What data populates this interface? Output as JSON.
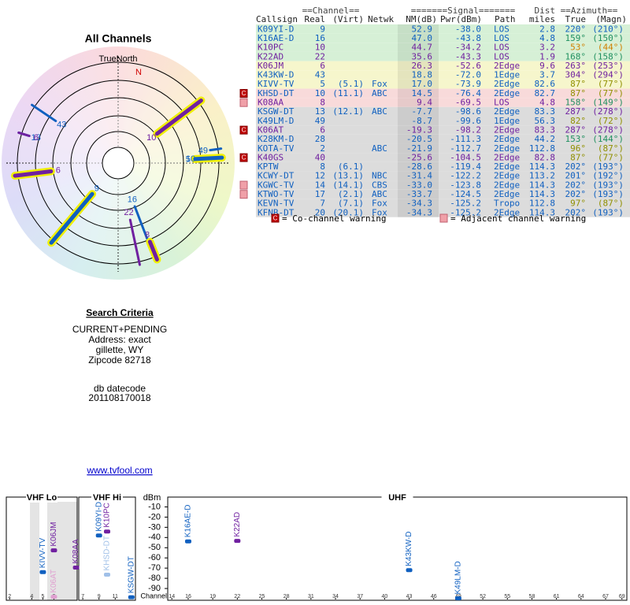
{
  "polar": {
    "title": "All Channels",
    "north_label": "TrueNorth",
    "n_label": "N",
    "rays": [
      {
        "label": "9",
        "azimuth": 220,
        "nm": 52.9,
        "color": "#1060c0",
        "thick": true
      },
      {
        "label": "16",
        "azimuth": 159,
        "nm": 47.0,
        "color": "#1060c0",
        "thick": false
      },
      {
        "label": "10",
        "azimuth": 53,
        "nm": 44.7,
        "color": "#7020a0",
        "thick": true
      },
      {
        "label": "22",
        "azimuth": 168,
        "nm": 35.6,
        "color": "#7020a0",
        "thick": false
      },
      {
        "label": "6",
        "azimuth": 263,
        "nm": 26.3,
        "color": "#7020a0",
        "thick": true
      },
      {
        "label": "43",
        "azimuth": 304,
        "nm": 18.8,
        "color": "#1060c0",
        "thick": false
      },
      {
        "label": "5",
        "azimuth": 87,
        "nm": 17.0,
        "color": "#1060c0",
        "thick": true
      },
      {
        "label": "10",
        "azimuth": 87,
        "nm": 14.5,
        "color": "#1060c0",
        "thick": false
      },
      {
        "label": "8",
        "azimuth": 158,
        "nm": 9.4,
        "color": "#7020a0",
        "thick": true
      },
      {
        "label": "13",
        "azimuth": 287,
        "nm": -7.7,
        "color": "#1060c0",
        "thick": false
      },
      {
        "label": "49",
        "azimuth": 82,
        "nm": -8.7,
        "color": "#1060c0",
        "thick": false
      },
      {
        "label": "6",
        "azimuth": 287,
        "nm": -19.3,
        "color": "#7020a0",
        "thick": false
      }
    ]
  },
  "table": {
    "header_groups": [
      "==Channel==",
      "=======Signal=======",
      "Dist",
      "==Azimuth=="
    ],
    "columns": [
      "Callsign",
      "Real",
      "(Virt)",
      "Netwk",
      "NM(dB)",
      "Pwr(dBm)",
      "Path",
      "miles",
      "True",
      "(Magn)"
    ],
    "rows": [
      {
        "cells": [
          "K09YI-D",
          "9",
          "",
          "",
          "52.9",
          "-38.0",
          "LOS",
          "2.8",
          "220°",
          "(210°)"
        ],
        "color": "#1060c0",
        "az_color": "#1060c0",
        "bg": "#d6f0d6"
      },
      {
        "cells": [
          "K16AE-D",
          "16",
          "",
          "",
          "47.0",
          "-43.8",
          "LOS",
          "4.8",
          "159°",
          "(150°)"
        ],
        "color": "#1060c0",
        "az_color": "#209060",
        "bg": "#d6f0d6"
      },
      {
        "cells": [
          "K10PC",
          "10",
          "",
          "",
          "44.7",
          "-34.2",
          "LOS",
          "3.2",
          "53°",
          "(44°)"
        ],
        "color": "#7020a0",
        "az_color": "#d08000",
        "bg": "#d6f0d6"
      },
      {
        "cells": [
          "K22AD",
          "22",
          "",
          "",
          "35.6",
          "-43.3",
          "LOS",
          "1.9",
          "168°",
          "(158°)"
        ],
        "color": "#7020a0",
        "az_color": "#209060",
        "bg": "#d6f0d6"
      },
      {
        "cells": [
          "K06JM",
          "6",
          "",
          "",
          "26.3",
          "-52.6",
          "2Edge",
          "9.6",
          "263°",
          "(253°)"
        ],
        "color": "#7020a0",
        "az_color": "#7020a0",
        "bg": "#f6f6cc"
      },
      {
        "cells": [
          "K43KW-D",
          "43",
          "",
          "",
          "18.8",
          "-72.0",
          "1Edge",
          "3.7",
          "304°",
          "(294°)"
        ],
        "color": "#1060c0",
        "az_color": "#7020a0",
        "bg": "#f6f6cc"
      },
      {
        "cells": [
          "KIVV-TV",
          "5",
          "(5.1)",
          "Fox",
          "17.0",
          "-73.9",
          "2Edge",
          "82.6",
          "87°",
          "(77°)"
        ],
        "color": "#1060c0",
        "az_color": "#909000",
        "bg": "#f6f6cc"
      },
      {
        "cells": [
          "KHSD-DT",
          "10",
          "(11.1)",
          "ABC",
          "14.5",
          "-76.4",
          "2Edge",
          "82.7",
          "87°",
          "(77°)"
        ],
        "color": "#1060c0",
        "az_color": "#909000",
        "bg": "#f8dada",
        "warning": "co"
      },
      {
        "cells": [
          "K08AA",
          "8",
          "",
          "",
          "9.4",
          "-69.5",
          "LOS",
          "4.8",
          "158°",
          "(149°)"
        ],
        "color": "#7020a0",
        "az_color": "#209060",
        "bg": "#f8dada",
        "warning": "adj"
      },
      {
        "cells": [
          "KSGW-DT",
          "13",
          "(12.1)",
          "ABC",
          "-7.7",
          "-98.6",
          "2Edge",
          "83.3",
          "287°",
          "(278°)"
        ],
        "color": "#1060c0",
        "az_color": "#7020a0",
        "bg": "#dcdcdc"
      },
      {
        "cells": [
          "K49LM-D",
          "49",
          "",
          "",
          "-8.7",
          "-99.6",
          "1Edge",
          "56.3",
          "82°",
          "(72°)"
        ],
        "color": "#1060c0",
        "az_color": "#909000",
        "bg": "#dcdcdc"
      },
      {
        "cells": [
          "K06AT",
          "6",
          "",
          "",
          "-19.3",
          "-98.2",
          "2Edge",
          "83.3",
          "287°",
          "(278°)"
        ],
        "color": "#7020a0",
        "az_color": "#7020a0",
        "bg": "#dcdcdc",
        "warning": "co"
      },
      {
        "cells": [
          "K28KM-D",
          "28",
          "",
          "",
          "-20.5",
          "-111.3",
          "2Edge",
          "44.2",
          "153°",
          "(144°)"
        ],
        "color": "#1060c0",
        "az_color": "#209060",
        "bg": "#dcdcdc"
      },
      {
        "cells": [
          "KOTA-TV",
          "2",
          "",
          "ABC",
          "-21.9",
          "-112.7",
          "2Edge",
          "112.8",
          "96°",
          "(87°)"
        ],
        "color": "#1060c0",
        "az_color": "#909000",
        "bg": "#dcdcdc"
      },
      {
        "cells": [
          "K40GS",
          "40",
          "",
          "",
          "-25.6",
          "-104.5",
          "2Edge",
          "82.8",
          "87°",
          "(77°)"
        ],
        "color": "#7020a0",
        "az_color": "#909000",
        "bg": "#dcdcdc",
        "warning": "co"
      },
      {
        "cells": [
          "KPTW",
          "8",
          "(6.1)",
          "",
          "-28.6",
          "-119.4",
          "2Edge",
          "114.3",
          "202°",
          "(193°)"
        ],
        "color": "#1060c0",
        "az_color": "#1060c0",
        "bg": "#dcdcdc"
      },
      {
        "cells": [
          "KCWY-DT",
          "12",
          "(13.1)",
          "NBC",
          "-31.4",
          "-122.2",
          "2Edge",
          "113.2",
          "201°",
          "(192°)"
        ],
        "color": "#1060c0",
        "az_color": "#1060c0",
        "bg": "#dcdcdc"
      },
      {
        "cells": [
          "KGWC-TV",
          "14",
          "(14.1)",
          "CBS",
          "-33.0",
          "-123.8",
          "2Edge",
          "114.3",
          "202°",
          "(193°)"
        ],
        "color": "#1060c0",
        "az_color": "#1060c0",
        "bg": "#dcdcdc",
        "warning": "adj"
      },
      {
        "cells": [
          "KTWO-TV",
          "17",
          "(2.1)",
          "ABC",
          "-33.7",
          "-124.5",
          "2Edge",
          "114.3",
          "202°",
          "(193°)"
        ],
        "color": "#1060c0",
        "az_color": "#1060c0",
        "bg": "#dcdcdc",
        "warning": "adj"
      },
      {
        "cells": [
          "KEVN-TV",
          "7",
          "(7.1)",
          "Fox",
          "-34.3",
          "-125.2",
          "Tropo",
          "112.8",
          "97°",
          "(87°)"
        ],
        "color": "#1060c0",
        "az_color": "#909000",
        "bg": "#dcdcdc"
      },
      {
        "cells": [
          "KFNB-DT",
          "20",
          "(20.1)",
          "Fox",
          "-34.3",
          "-125.2",
          "2Edge",
          "114.3",
          "202°",
          "(193°)"
        ],
        "color": "#1060c0",
        "az_color": "#1060c0",
        "bg": "#dcdcdc"
      }
    ]
  },
  "legend": {
    "co_icon": "C",
    "co_text": "= Co-channel warning",
    "adj_text": "= Adjacent channel warning"
  },
  "search": {
    "title": "Search Criteria",
    "lines": [
      "CURRENT+PENDING",
      "Address: exact",
      "gillette, WY",
      "Zipcode 82718"
    ]
  },
  "datecode": {
    "title": "db datecode",
    "value": "201108170018"
  },
  "link": "www.tvfool.com",
  "chart_data": {
    "type": "strip",
    "y_label": "dBm",
    "x_label": "Channel",
    "ylim": [
      -100,
      -5
    ],
    "yticks": [
      -10,
      -20,
      -30,
      -40,
      -50,
      -60,
      -70,
      -80,
      -90
    ],
    "sections": [
      {
        "name": "VHF Lo",
        "xlim": [
          1.7,
          8.1
        ],
        "xticks": [
          2,
          4,
          5,
          6
        ]
      },
      {
        "name": "VHF Hi",
        "xlim": [
          6.5,
          13.5
        ],
        "xticks": [
          7,
          9,
          11
        ]
      },
      {
        "name": "UHF",
        "xlim": [
          13.5,
          69.6
        ],
        "xticks": [
          14,
          16,
          19,
          22,
          25,
          28,
          31,
          34,
          37,
          40,
          43,
          46,
          49,
          52,
          55,
          58,
          61,
          64,
          67,
          69
        ]
      }
    ],
    "points": [
      {
        "name": "KIVV-TV",
        "channel": 5,
        "value": -73.9,
        "color": "#1060c0"
      },
      {
        "name": "K06JM",
        "channel": 6,
        "value": -52.6,
        "color": "#7020a0"
      },
      {
        "name": "K06AT",
        "channel": 6,
        "value": -98.2,
        "color": "#e0a0d0"
      },
      {
        "name": "K08AA",
        "channel": 8,
        "value": -69.5,
        "color": "#7020a0"
      },
      {
        "name": "K09YI-D",
        "channel": 9,
        "value": -38.0,
        "color": "#1060c0"
      },
      {
        "name": "KHSD-DT",
        "channel": 10,
        "value": -76.4,
        "color": "#a0c0e8"
      },
      {
        "name": "K10PC",
        "channel": 10,
        "value": -34.2,
        "color": "#7020a0"
      },
      {
        "name": "KSGW-DT",
        "channel": 13,
        "value": -98.6,
        "color": "#1060c0"
      },
      {
        "name": "K16AE-D",
        "channel": 16,
        "value": -43.8,
        "color": "#1060c0"
      },
      {
        "name": "K22AD",
        "channel": 22,
        "value": -43.3,
        "color": "#7020a0"
      },
      {
        "name": "K43KW-D",
        "channel": 43,
        "value": -72.0,
        "color": "#1060c0"
      },
      {
        "name": "K49LM-D",
        "channel": 49,
        "value": -99.6,
        "color": "#1060c0"
      }
    ]
  }
}
